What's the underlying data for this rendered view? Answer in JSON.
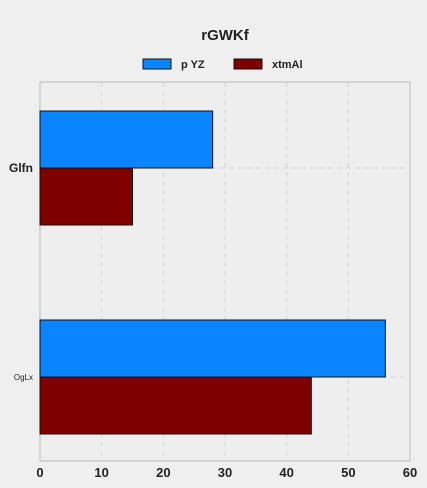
{
  "chart_data": {
    "type": "bar",
    "orientation": "horizontal",
    "title": "rGWKf",
    "xlabel": "",
    "ylabel": "",
    "categories": [
      "Glfn",
      "OgLx"
    ],
    "series": [
      {
        "name": "p YZ",
        "values": [
          28,
          56
        ],
        "color": "#0a84ff"
      },
      {
        "name": "xtmAl",
        "values": [
          15,
          44
        ],
        "color": "#800000"
      }
    ],
    "xlim": [
      0,
      60
    ],
    "xticks": [
      "0",
      "10",
      "20",
      "30",
      "40",
      "50",
      "60"
    ],
    "grid": true,
    "legend_position": "top-center"
  },
  "colors": {
    "background": "#efefef",
    "plot_background": "#eeeeee",
    "grid": "#d4d4d4",
    "axis": "#bbbbbb",
    "bar_edge": "#111111"
  }
}
